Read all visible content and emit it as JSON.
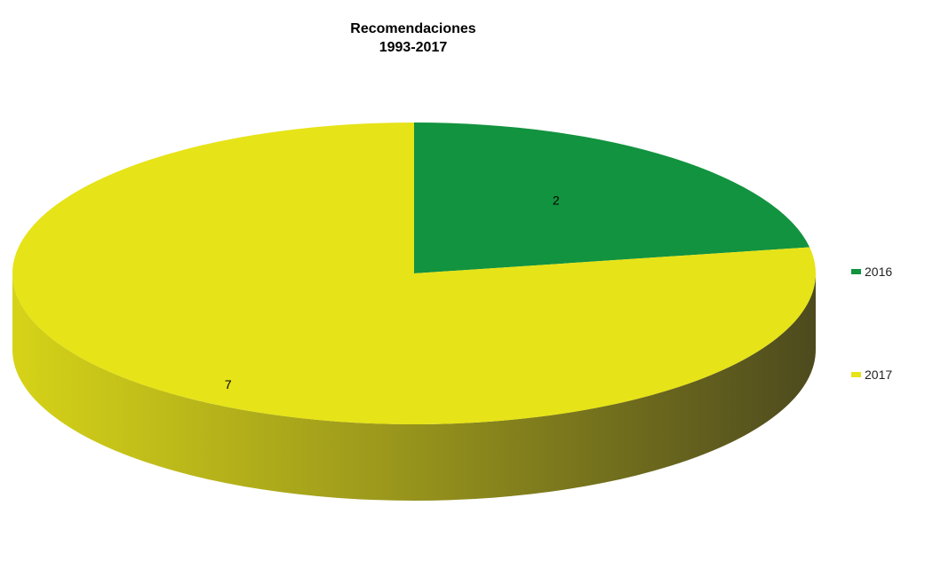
{
  "chart_data": {
    "type": "pie",
    "title": "Recomendaciones",
    "subtitle": "1993-2017",
    "slices": [
      {
        "label": "2016",
        "value": 2,
        "data_label": "2",
        "color": "#12933f"
      },
      {
        "label": "2017",
        "value": 7,
        "data_label": "7",
        "color": "#e6e318"
      }
    ],
    "legend_position": "right",
    "style": "3d"
  }
}
